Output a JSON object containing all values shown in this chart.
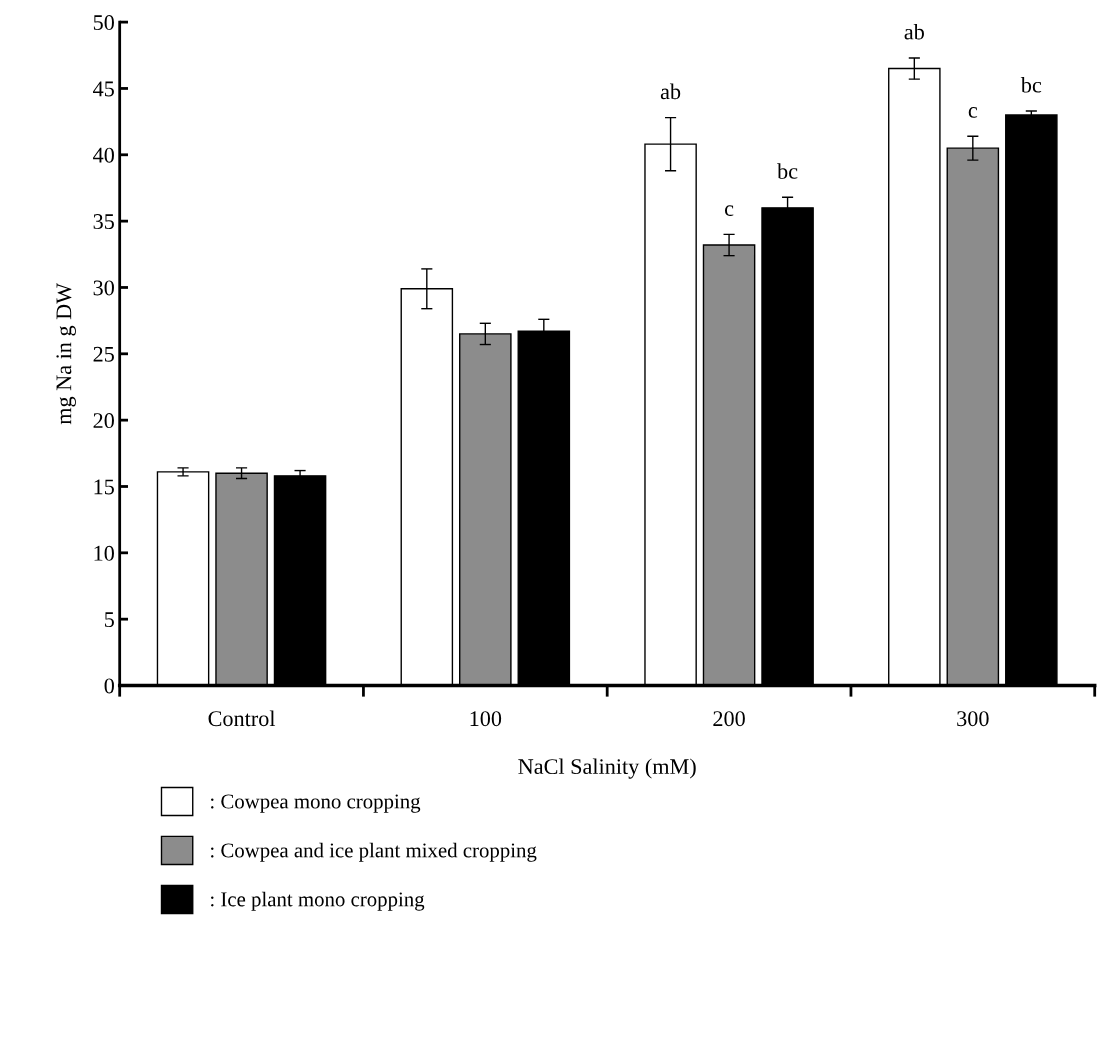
{
  "chart_data": {
    "type": "bar",
    "xlabel": "NaCl Salinity (mM)",
    "ylabel": "mg Na in g DW",
    "categories": [
      "Control",
      "100",
      "200",
      "300"
    ],
    "series": [
      {
        "name": ": Cowpea mono cropping",
        "color": "#ffffff",
        "values": [
          16.1,
          29.9,
          40.8,
          46.5
        ],
        "errors": [
          0.3,
          1.5,
          2.0,
          0.8
        ],
        "value_labels": [
          null,
          null,
          "ab",
          "ab"
        ]
      },
      {
        "name": ": Cowpea and ice plant mixed cropping",
        "color": "#8c8c8c",
        "values": [
          16.0,
          26.5,
          33.2,
          40.5
        ],
        "errors": [
          0.4,
          0.8,
          0.8,
          0.9
        ],
        "value_labels": [
          null,
          null,
          "c",
          "c"
        ]
      },
      {
        "name": ": Ice plant mono cropping",
        "color": "#000000",
        "values": [
          15.8,
          26.7,
          36.0,
          43.0
        ],
        "errors": [
          0.4,
          0.9,
          0.8,
          0.3
        ],
        "value_labels": [
          null,
          null,
          "bc",
          "bc"
        ]
      }
    ],
    "ylim": [
      0,
      50
    ],
    "yticks": [
      0,
      5,
      10,
      15,
      20,
      25,
      30,
      35,
      40,
      45,
      50
    ],
    "grid": false,
    "legend": "bottom"
  }
}
